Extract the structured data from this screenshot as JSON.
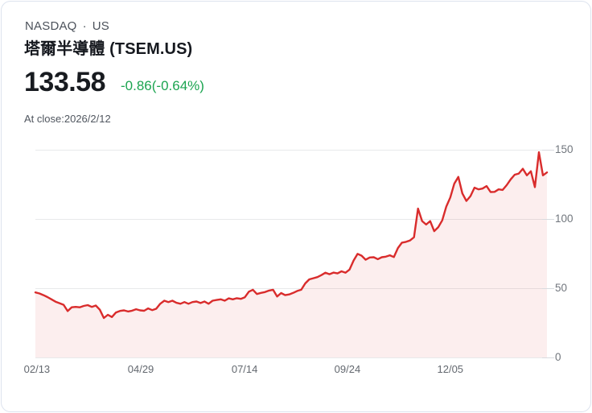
{
  "header": {
    "exchange": "NASDAQ",
    "separator": "·",
    "region": "US",
    "title": "塔爾半導體 (TSEM.US)",
    "price": "133.58",
    "change": "-0.86(-0.64%)",
    "as_of": "At close:2026/2/12",
    "change_color": "#1ba450"
  },
  "chart_data": {
    "type": "area",
    "series": [
      {
        "name": "TSEM.US",
        "values": [
          47.0,
          46.2,
          45.0,
          43.6,
          42.0,
          40.3,
          39.2,
          38.0,
          33.5,
          36.2,
          36.5,
          36.2,
          37.2,
          37.8,
          36.5,
          37.5,
          34.5,
          28.5,
          30.8,
          29.2,
          32.5,
          33.6,
          34.0,
          33.2,
          33.8,
          34.8,
          34.0,
          33.7,
          35.4,
          34.2,
          35.2,
          38.8,
          41.0,
          40.0,
          41.0,
          39.5,
          38.8,
          40.0,
          38.8,
          40.0,
          40.4,
          39.3,
          40.4,
          38.8,
          41.0,
          41.5,
          42.0,
          41.0,
          42.7,
          42.0,
          42.8,
          42.3,
          43.5,
          47.5,
          48.9,
          45.8,
          46.6,
          47.2,
          48.3,
          48.9,
          44.0,
          46.5,
          45.0,
          45.5,
          46.6,
          48.0,
          48.9,
          53.5,
          56.4,
          57.2,
          58.0,
          59.5,
          61.2,
          60.1,
          61.3,
          60.7,
          62.2,
          61.2,
          63.5,
          70.0,
          74.8,
          73.5,
          70.6,
          72.2,
          72.4,
          71.0,
          72.4,
          72.8,
          73.8,
          72.5,
          79.0,
          82.9,
          83.5,
          84.5,
          86.8,
          107.5,
          98.5,
          96.0,
          98.5,
          91.2,
          94.0,
          99.0,
          108.9,
          115.5,
          125.5,
          130.4,
          118.5,
          113.0,
          116.5,
          122.6,
          121.4,
          122.0,
          123.8,
          119.5,
          119.6,
          121.4,
          121.0,
          124.4,
          128.6,
          132.0,
          132.8,
          136.3,
          131.5,
          134.5,
          123.0,
          148.2,
          131.5,
          133.58
        ]
      }
    ],
    "ylim": [
      0,
      150
    ],
    "y_ticks": [
      150,
      100,
      50,
      0
    ],
    "x_ticks": [
      {
        "label": "02/13",
        "f": 0.003
      },
      {
        "label": "04/29",
        "f": 0.206
      },
      {
        "label": "07/14",
        "f": 0.409
      },
      {
        "label": "09/24",
        "f": 0.61
      },
      {
        "label": "12/05",
        "f": 0.811
      }
    ],
    "grid": true,
    "legend": "none",
    "line_color": "#d92c2c",
    "fill_color": "rgba(217,44,44,0.08)"
  }
}
